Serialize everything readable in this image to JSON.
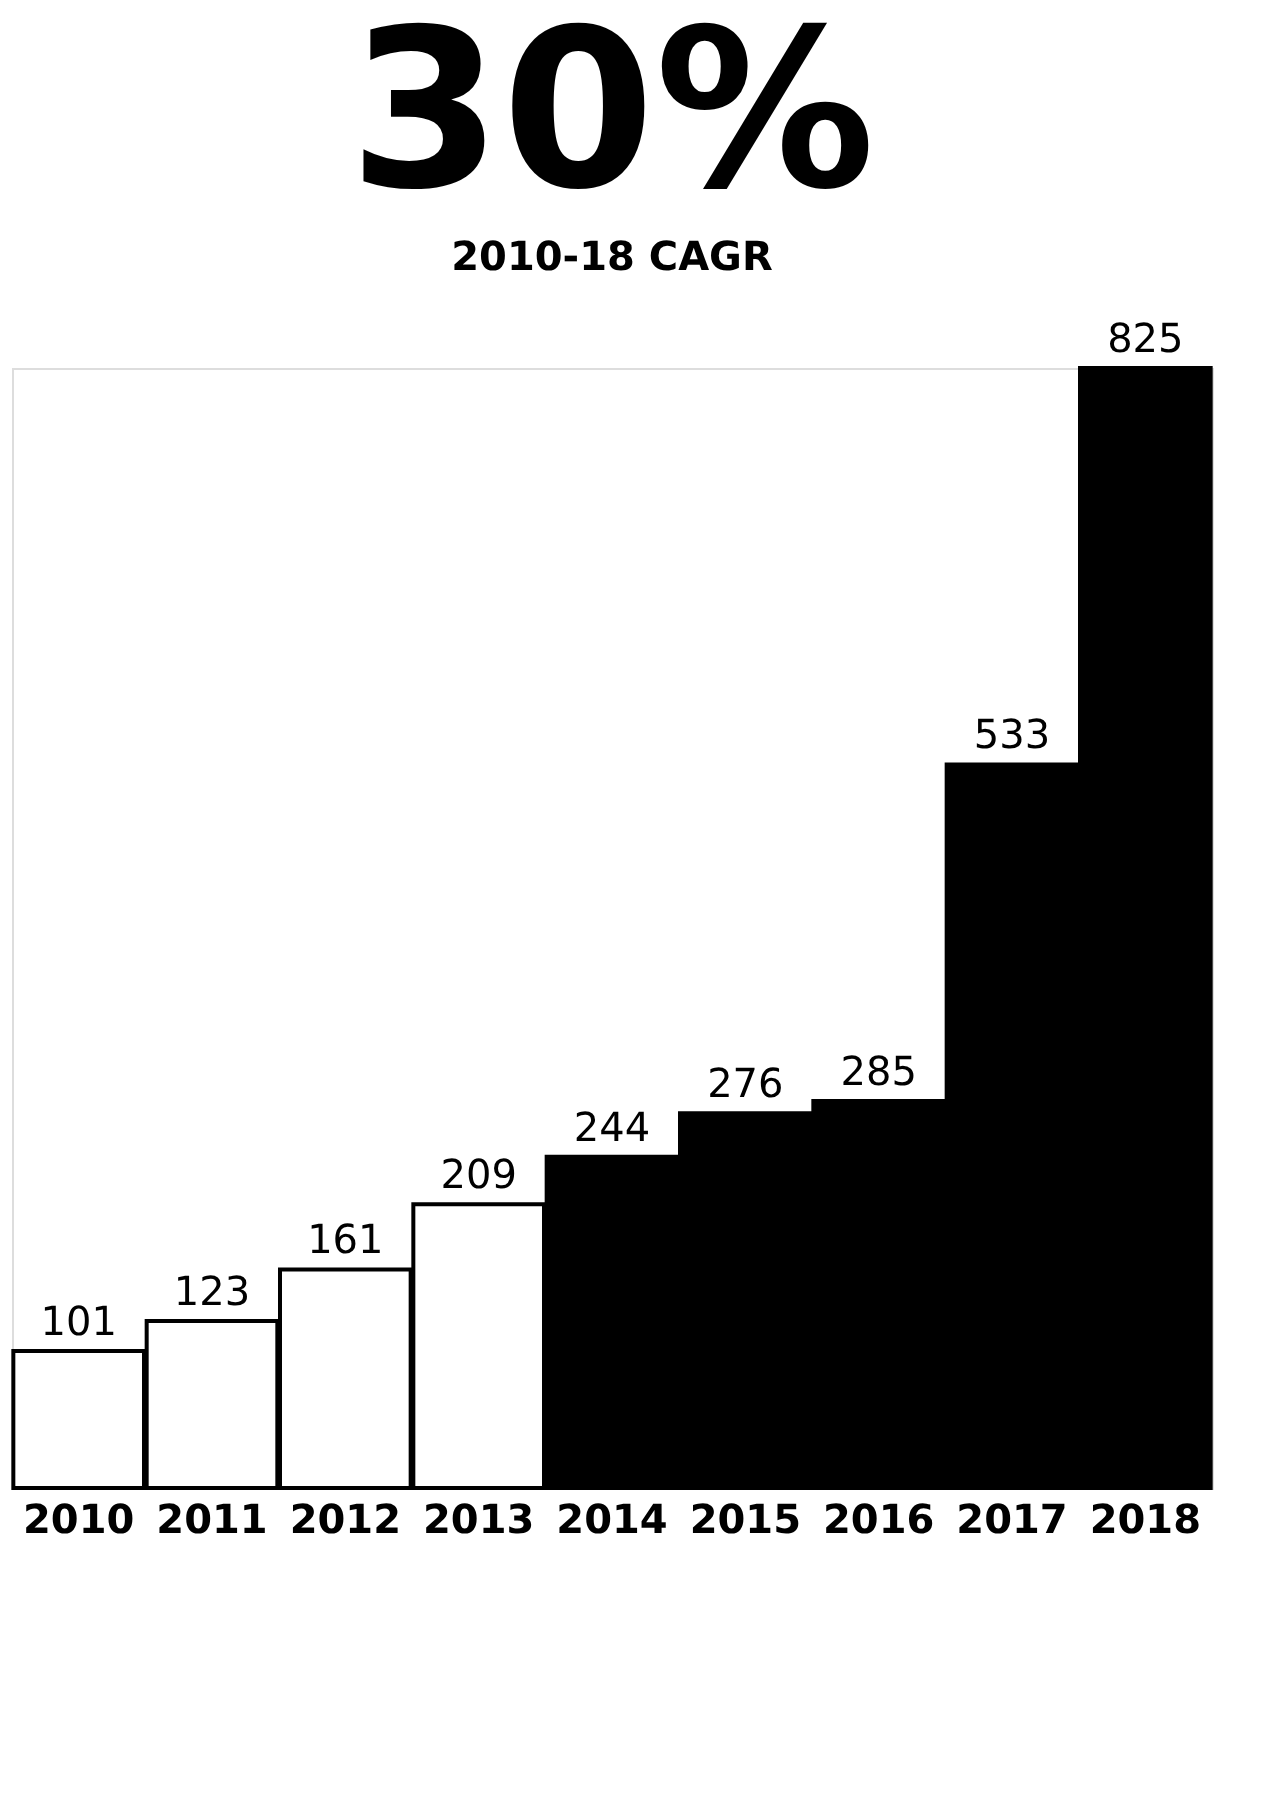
{
  "chart_data": {
    "type": "bar",
    "title": "30%",
    "subtitle": "2010-18 CAGR",
    "categories": [
      "2010",
      "2011",
      "2012",
      "2013",
      "2014",
      "2015",
      "2016",
      "2017",
      "2018"
    ],
    "values": [
      101,
      123,
      161,
      209,
      244,
      276,
      285,
      533,
      825
    ],
    "colors": [
      "#ffffff",
      "#ffffff",
      "#ffffff",
      "#ffffff",
      "#000000",
      "#000000",
      "#000000",
      "#000000",
      "#000000"
    ],
    "data_labels": true
  }
}
